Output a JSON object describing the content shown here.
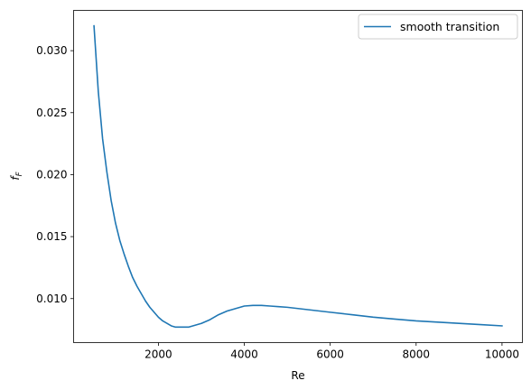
{
  "chart_data": {
    "type": "line",
    "title": "",
    "xlabel": "Re",
    "ylabel_main": "f",
    "ylabel_sub": "F",
    "xlim": [
      25,
      10475
    ],
    "ylim": [
      0.00645,
      0.03325
    ],
    "xticks": [
      2000,
      4000,
      6000,
      8000,
      10000
    ],
    "xtick_labels": [
      "2000",
      "4000",
      "6000",
      "8000",
      "10000"
    ],
    "yticks": [
      0.01,
      0.015,
      0.02,
      0.025,
      0.03
    ],
    "ytick_labels": [
      "0.010",
      "0.015",
      "0.020",
      "0.025",
      "0.030"
    ],
    "grid": false,
    "legend_placement": "top-right",
    "colors": {
      "series": "#1f77b4",
      "axes": "#000000",
      "legend_border": "#cccccc"
    },
    "series": [
      {
        "name": "smooth transition",
        "x": [
          500,
          600,
          700,
          800,
          900,
          1000,
          1100,
          1200,
          1300,
          1400,
          1500,
          1600,
          1700,
          1800,
          1900,
          2000,
          2100,
          2200,
          2300,
          2400,
          2500,
          2600,
          2700,
          2800,
          2900,
          3000,
          3200,
          3400,
          3600,
          3800,
          4000,
          4200,
          4400,
          4600,
          4800,
          5000,
          5500,
          6000,
          6500,
          7000,
          7500,
          8000,
          8500,
          9000,
          9500,
          10000
        ],
        "y": [
          0.032,
          0.0267,
          0.0229,
          0.0202,
          0.0179,
          0.0161,
          0.0147,
          0.0136,
          0.0126,
          0.0117,
          0.011,
          0.0104,
          0.0098,
          0.0093,
          0.0089,
          0.0085,
          0.0082,
          0.008,
          0.0078,
          0.0077,
          0.0077,
          0.0077,
          0.0077,
          0.0078,
          0.0079,
          0.008,
          0.0083,
          0.0087,
          0.009,
          0.0092,
          0.0094,
          0.00945,
          0.00945,
          0.0094,
          0.00935,
          0.0093,
          0.0091,
          0.0089,
          0.0087,
          0.0085,
          0.00835,
          0.0082,
          0.0081,
          0.008,
          0.0079,
          0.0078
        ]
      }
    ]
  }
}
